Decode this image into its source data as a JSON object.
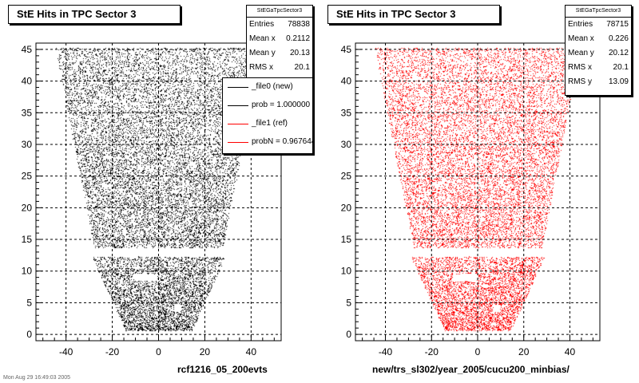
{
  "chart_data": [
    {
      "type": "scatter",
      "title": "StE Hits in TPC Sector 3",
      "xlabel": "rcf1216_05_200evts",
      "ylabel": "",
      "xlim": [
        -53,
        53
      ],
      "ylim": [
        -1,
        46
      ],
      "xticks": [
        -40,
        -20,
        0,
        20,
        40
      ],
      "yticks": [
        0,
        5,
        10,
        15,
        20,
        25,
        30,
        35,
        40,
        45
      ],
      "grid": true,
      "color": "#000000",
      "stats": {
        "name": "StEGaTpcSector3",
        "entries": "78838",
        "mean_x": "0.2112",
        "mean_y": "20.13",
        "rms_x": "20.1",
        "rms_y": ""
      },
      "legend": [
        {
          "label": "_file0 (new)",
          "color": "#000000"
        },
        {
          "label": "prob = 1.000000",
          "color": "#000000"
        },
        {
          "label": "_file1 (ref)",
          "color": "#ff0000"
        },
        {
          "label": "probN = 0.967644",
          "color": "#ff0000"
        }
      ]
    },
    {
      "type": "scatter",
      "title": "StE Hits in TPC Sector 3",
      "xlabel": "new/trs_sl302/year_2005/cucu200_minbias/",
      "ylabel": "",
      "xlim": [
        -53,
        53
      ],
      "ylim": [
        -1,
        46
      ],
      "xticks": [
        -40,
        -20,
        0,
        20,
        40
      ],
      "yticks": [
        0,
        5,
        10,
        15,
        20,
        25,
        30,
        35,
        40,
        45
      ],
      "grid": true,
      "color": "#ff0000",
      "stats": {
        "name": "StEGaTpcSector3",
        "entries": "78715",
        "mean_x": "0.226",
        "mean_y": "20.12",
        "rms_x": "20.1",
        "rms_y": "13.09"
      }
    }
  ],
  "footer": "Mon Aug 29 16:49:03 2005"
}
